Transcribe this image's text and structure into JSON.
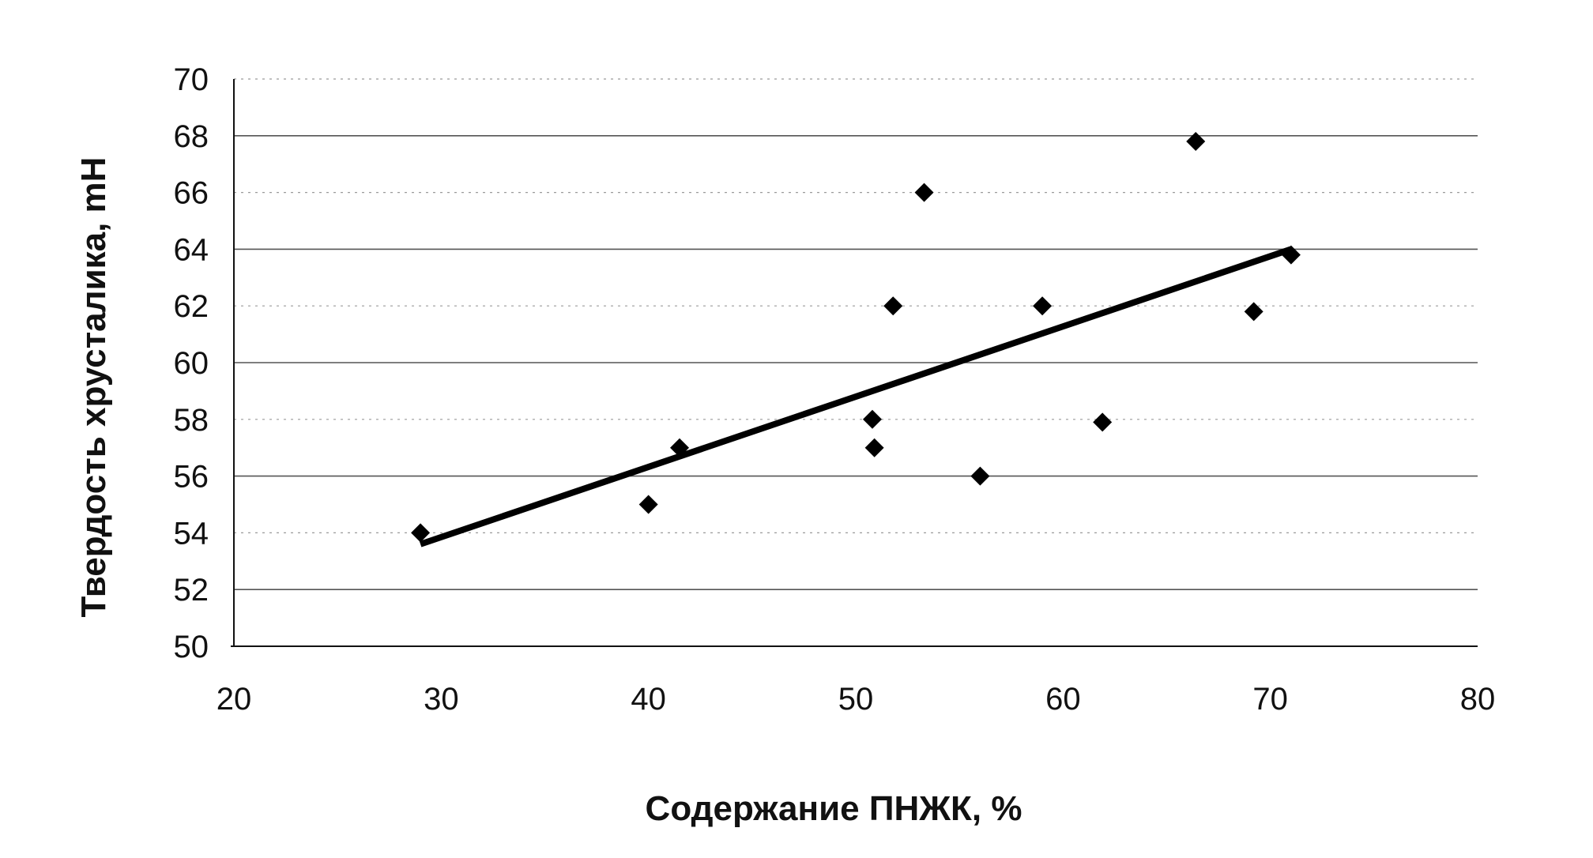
{
  "chart_data": {
    "type": "scatter",
    "xlabel": "Содержание ПНЖК, %",
    "ylabel": "Твердость хрусталика, mH",
    "xlim": [
      20,
      80
    ],
    "ylim": [
      50,
      70
    ],
    "x_ticks": [
      20,
      30,
      40,
      50,
      60,
      70,
      80
    ],
    "y_ticks": [
      50,
      52,
      54,
      56,
      58,
      60,
      62,
      64,
      66,
      68,
      70
    ],
    "grid": "horizontal",
    "marker": "diamond",
    "color": "#000000",
    "points": [
      {
        "x": 29,
        "y": 54
      },
      {
        "x": 40,
        "y": 55
      },
      {
        "x": 41.5,
        "y": 57
      },
      {
        "x": 50.8,
        "y": 58
      },
      {
        "x": 50.9,
        "y": 57
      },
      {
        "x": 51.8,
        "y": 62
      },
      {
        "x": 53.3,
        "y": 66
      },
      {
        "x": 56,
        "y": 56
      },
      {
        "x": 59,
        "y": 62
      },
      {
        "x": 61.9,
        "y": 57.9
      },
      {
        "x": 66.4,
        "y": 67.8
      },
      {
        "x": 69.2,
        "y": 61.8
      },
      {
        "x": 71,
        "y": 63.8
      }
    ],
    "trendline": {
      "type": "linear",
      "start": {
        "x": 29,
        "y": 53.6
      },
      "end": {
        "x": 71,
        "y": 64
      }
    }
  }
}
